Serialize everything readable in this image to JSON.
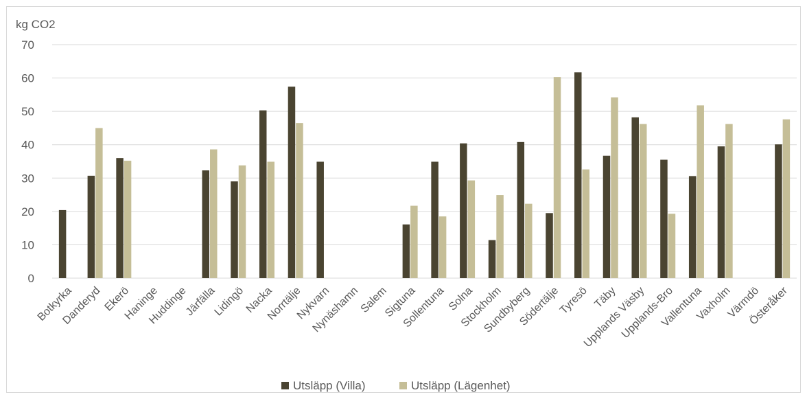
{
  "chart_data": {
    "type": "bar",
    "ylabel": "kg CO2",
    "ylim": [
      0,
      70
    ],
    "yticks": [
      0,
      10,
      20,
      30,
      40,
      50,
      60,
      70
    ],
    "grid": true,
    "legend_position": "bottom",
    "categories": [
      "Botkyrka",
      "Danderyd",
      "Ekerö",
      "Haninge",
      "Huddinge",
      "Järfälla",
      "Lidingö",
      "Nacka",
      "Norrtälje",
      "Nykvarn",
      "Nynäshamn",
      "Salem",
      "Sigtuna",
      "Sollentuna",
      "Solna",
      "Stockholm",
      "Sundbyberg",
      "Södertälje",
      "Tyresö",
      "Täby",
      "Upplands Väsby",
      "Upplands-Bro",
      "Vallentuna",
      "Vaxholm",
      "Värmdö",
      "Österåker"
    ],
    "series": [
      {
        "name": "Utsläpp (Villa)",
        "color": "#4a4431",
        "values": [
          20.4,
          30.7,
          36.0,
          null,
          null,
          32.3,
          29.0,
          50.3,
          57.4,
          34.9,
          null,
          null,
          16.1,
          34.9,
          40.4,
          11.4,
          40.8,
          19.5,
          61.7,
          36.7,
          48.2,
          35.5,
          30.6,
          39.5,
          null,
          40.1
        ]
      },
      {
        "name": "Utsläpp (Lägenhet)",
        "color": "#c5be97",
        "values": [
          null,
          45.0,
          35.2,
          null,
          null,
          38.6,
          33.8,
          34.9,
          46.5,
          null,
          null,
          null,
          21.7,
          18.5,
          29.3,
          24.9,
          22.3,
          60.3,
          32.6,
          54.2,
          46.2,
          19.3,
          51.8,
          46.2,
          null,
          47.6
        ]
      }
    ]
  }
}
